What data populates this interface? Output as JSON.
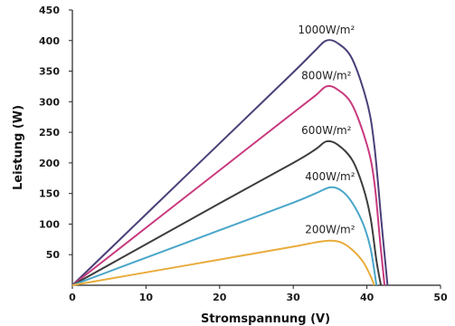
{
  "chart_data": {
    "type": "line",
    "xlabel": "Stromspannung (V)",
    "ylabel": "Leistung (W)",
    "xlim": [
      0,
      50
    ],
    "ylim": [
      0,
      450
    ],
    "xticks": [
      0,
      10,
      20,
      30,
      40,
      50
    ],
    "yticks": [
      50,
      100,
      150,
      200,
      250,
      300,
      350,
      400,
      450
    ],
    "grid": false,
    "series": [
      {
        "name": "1000W/m²",
        "color": "#4b3f78",
        "points": [
          [
            0,
            0
          ],
          [
            10,
            116
          ],
          [
            20,
            232
          ],
          [
            30,
            348
          ],
          [
            33,
            384
          ],
          [
            34.5,
            400
          ],
          [
            36,
            396
          ],
          [
            38,
            370
          ],
          [
            40,
            300
          ],
          [
            41,
            230
          ],
          [
            42,
            100
          ],
          [
            42.8,
            0
          ]
        ]
      },
      {
        "name": "800W/m²",
        "color": "#c83a7e",
        "points": [
          [
            0,
            0
          ],
          [
            10,
            94
          ],
          [
            20,
            188
          ],
          [
            30,
            282
          ],
          [
            33,
            310
          ],
          [
            34.5,
            325
          ],
          [
            36,
            320
          ],
          [
            38,
            295
          ],
          [
            40,
            230
          ],
          [
            41,
            170
          ],
          [
            41.8,
            70
          ],
          [
            42.4,
            0
          ]
        ]
      },
      {
        "name": "600W/m²",
        "color": "#3d3d3d",
        "points": [
          [
            0,
            0
          ],
          [
            10,
            67
          ],
          [
            20,
            134
          ],
          [
            30,
            200
          ],
          [
            33,
            222
          ],
          [
            34.5,
            235
          ],
          [
            36,
            230
          ],
          [
            38,
            205
          ],
          [
            39.5,
            160
          ],
          [
            40.5,
            110
          ],
          [
            41.3,
            40
          ],
          [
            41.9,
            0
          ]
        ]
      },
      {
        "name": "400W/m²",
        "color": "#4aa6c9",
        "points": [
          [
            0,
            0
          ],
          [
            10,
            45
          ],
          [
            20,
            90
          ],
          [
            30,
            135
          ],
          [
            33,
            150
          ],
          [
            35,
            160
          ],
          [
            36.5,
            155
          ],
          [
            38,
            135
          ],
          [
            39.5,
            100
          ],
          [
            40.5,
            60
          ],
          [
            41.3,
            0
          ]
        ]
      },
      {
        "name": "200W/m²",
        "color": "#e8ac3c",
        "points": [
          [
            0,
            0
          ],
          [
            10,
            21
          ],
          [
            20,
            42
          ],
          [
            30,
            63
          ],
          [
            33,
            70
          ],
          [
            35,
            73
          ],
          [
            36.5,
            70
          ],
          [
            38,
            58
          ],
          [
            39.5,
            38
          ],
          [
            40.5,
            15
          ],
          [
            41,
            0
          ]
        ]
      }
    ]
  }
}
